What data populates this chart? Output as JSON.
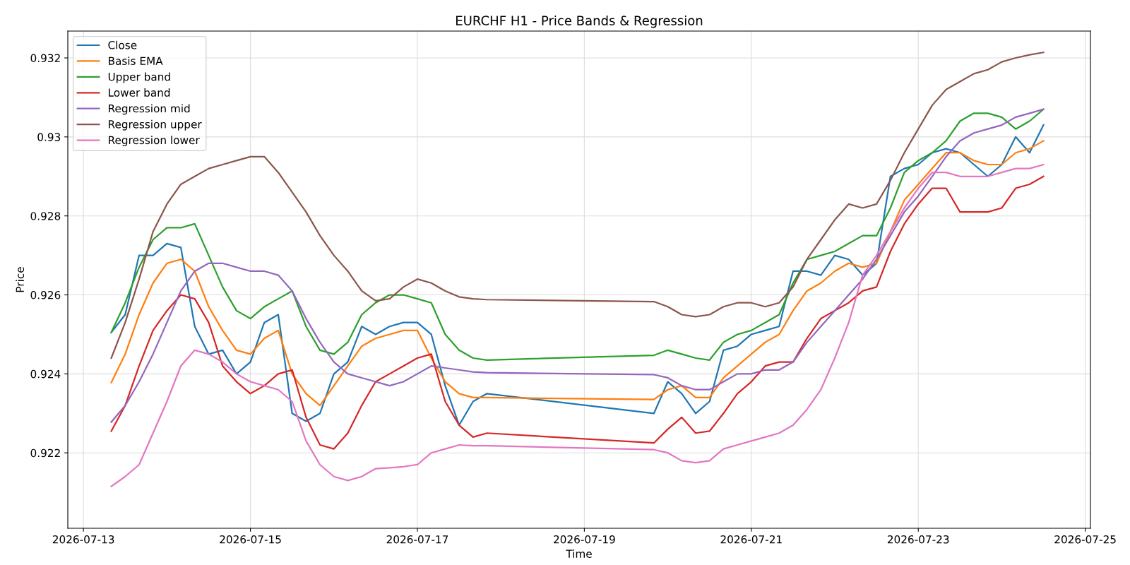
{
  "chart_data": {
    "type": "line",
    "title": "EURCHF H1 - Price Bands & Regression",
    "xlabel": "Time",
    "ylabel": "Price",
    "x": [
      "2026-07-13T08:00",
      "2026-07-13T12:00",
      "2026-07-13T16:00",
      "2026-07-13T20:00",
      "2026-07-14T00:00",
      "2026-07-14T04:00",
      "2026-07-14T08:00",
      "2026-07-14T12:00",
      "2026-07-14T16:00",
      "2026-07-14T20:00",
      "2026-07-15T00:00",
      "2026-07-15T04:00",
      "2026-07-15T08:00",
      "2026-07-15T12:00",
      "2026-07-15T16:00",
      "2026-07-15T20:00",
      "2026-07-16T00:00",
      "2026-07-16T04:00",
      "2026-07-16T08:00",
      "2026-07-16T12:00",
      "2026-07-16T16:00",
      "2026-07-16T20:00",
      "2026-07-17T00:00",
      "2026-07-17T04:00",
      "2026-07-17T08:00",
      "2026-07-17T12:00",
      "2026-07-17T16:00",
      "2026-07-17T20:00",
      "2026-07-19T20:00",
      "2026-07-20T00:00",
      "2026-07-20T04:00",
      "2026-07-20T08:00",
      "2026-07-20T12:00",
      "2026-07-20T16:00",
      "2026-07-20T20:00",
      "2026-07-21T00:00",
      "2026-07-21T04:00",
      "2026-07-21T08:00",
      "2026-07-21T12:00",
      "2026-07-21T16:00",
      "2026-07-21T20:00",
      "2026-07-22T00:00",
      "2026-07-22T04:00",
      "2026-07-22T08:00",
      "2026-07-22T12:00",
      "2026-07-22T16:00",
      "2026-07-22T20:00",
      "2026-07-23T00:00",
      "2026-07-23T04:00",
      "2026-07-23T08:00",
      "2026-07-23T12:00",
      "2026-07-23T16:00",
      "2026-07-23T20:00",
      "2026-07-24T00:00",
      "2026-07-24T04:00",
      "2026-07-24T08:00",
      "2026-07-24T12:00"
    ],
    "series": [
      {
        "name": "Close",
        "color": "#1f77b4",
        "values": [
          0.92505,
          0.9255,
          0.927,
          0.927,
          0.9273,
          0.9272,
          0.9252,
          0.9245,
          0.9246,
          0.924,
          0.9243,
          0.9253,
          0.9255,
          0.923,
          0.9228,
          0.923,
          0.924,
          0.9243,
          0.9252,
          0.925,
          0.9252,
          0.9253,
          0.9253,
          0.925,
          0.9237,
          0.9227,
          0.9233,
          0.9235,
          0.923,
          0.9238,
          0.9235,
          0.923,
          0.9233,
          0.9246,
          0.9247,
          0.925,
          0.9251,
          0.9252,
          0.9266,
          0.9266,
          0.9265,
          0.927,
          0.9269,
          0.9265,
          0.9268,
          0.929,
          0.9292,
          0.9293,
          0.9296,
          0.9297,
          0.9296,
          0.9293,
          0.929,
          0.9293,
          0.93,
          0.9296,
          0.9303
        ]
      },
      {
        "name": "Basis EMA",
        "color": "#ff7f0e",
        "values": [
          0.92378,
          0.9245,
          0.9255,
          0.9263,
          0.9268,
          0.9269,
          0.9266,
          0.9257,
          0.9251,
          0.9246,
          0.9245,
          0.9249,
          0.9251,
          0.924,
          0.9235,
          0.9232,
          0.9237,
          0.9242,
          0.9247,
          0.9249,
          0.925,
          0.9251,
          0.9251,
          0.9244,
          0.9238,
          0.9235,
          0.9234,
          0.9234,
          0.92335,
          0.9236,
          0.9237,
          0.9234,
          0.9234,
          0.9239,
          0.9242,
          0.9245,
          0.9248,
          0.925,
          0.9256,
          0.9261,
          0.9263,
          0.9266,
          0.9268,
          0.9267,
          0.9268,
          0.9276,
          0.9284,
          0.9288,
          0.9292,
          0.9296,
          0.9296,
          0.9294,
          0.9293,
          0.9293,
          0.9296,
          0.9297,
          0.9299
        ]
      },
      {
        "name": "Upper band",
        "color": "#2ca02c",
        "values": [
          0.92505,
          0.9258,
          0.9267,
          0.9274,
          0.9277,
          0.9277,
          0.9278,
          0.927,
          0.9262,
          0.9256,
          0.9254,
          0.9257,
          0.9259,
          0.9261,
          0.9252,
          0.9246,
          0.9245,
          0.9248,
          0.9255,
          0.9258,
          0.926,
          0.926,
          0.9259,
          0.9258,
          0.925,
          0.9246,
          0.9244,
          0.92435,
          0.92447,
          0.9246,
          0.9245,
          0.9244,
          0.92435,
          0.9248,
          0.925,
          0.9251,
          0.9253,
          0.9255,
          0.9263,
          0.9269,
          0.927,
          0.9271,
          0.9273,
          0.9275,
          0.9275,
          0.9282,
          0.9291,
          0.9294,
          0.9296,
          0.9299,
          0.9304,
          0.9306,
          0.9306,
          0.9305,
          0.9302,
          0.9304,
          0.9307
        ]
      },
      {
        "name": "Lower band",
        "color": "#d62728",
        "values": [
          0.92255,
          0.9232,
          0.9242,
          0.9251,
          0.9256,
          0.926,
          0.9259,
          0.9253,
          0.9242,
          0.9238,
          0.9235,
          0.9237,
          0.924,
          0.9241,
          0.9229,
          0.9222,
          0.9221,
          0.9225,
          0.9232,
          0.9238,
          0.924,
          0.9242,
          0.9244,
          0.9245,
          0.9233,
          0.9227,
          0.9224,
          0.9225,
          0.92225,
          0.9226,
          0.9229,
          0.9225,
          0.92255,
          0.923,
          0.9235,
          0.9238,
          0.9242,
          0.9243,
          0.9243,
          0.9249,
          0.9254,
          0.9256,
          0.9258,
          0.9261,
          0.9262,
          0.9271,
          0.9278,
          0.9283,
          0.9287,
          0.9287,
          0.9281,
          0.9281,
          0.9281,
          0.9282,
          0.9287,
          0.9288,
          0.929
        ]
      },
      {
        "name": "Regression mid",
        "color": "#9467bd",
        "values": [
          0.92278,
          0.9232,
          0.9238,
          0.9245,
          0.9253,
          0.9261,
          0.9266,
          0.9268,
          0.9268,
          0.9267,
          0.9266,
          0.9266,
          0.9265,
          0.9261,
          0.9254,
          0.9248,
          0.9243,
          0.924,
          0.9239,
          0.9238,
          0.9237,
          0.9238,
          0.924,
          0.9242,
          0.92415,
          0.9241,
          0.92405,
          0.92403,
          0.92398,
          0.9239,
          0.9237,
          0.9236,
          0.9236,
          0.9238,
          0.924,
          0.924,
          0.9241,
          0.9241,
          0.9243,
          0.9248,
          0.9252,
          0.9256,
          0.926,
          0.9264,
          0.9269,
          0.9275,
          0.9281,
          0.9285,
          0.929,
          0.9295,
          0.9299,
          0.9301,
          0.9302,
          0.9303,
          0.9305,
          0.9306,
          0.9307
        ]
      },
      {
        "name": "Regression upper",
        "color": "#8c564b",
        "values": [
          0.9244,
          0.9253,
          0.9264,
          0.9276,
          0.9283,
          0.9288,
          0.929,
          0.9292,
          0.9293,
          0.9294,
          0.9295,
          0.9295,
          0.9291,
          0.9286,
          0.9281,
          0.9275,
          0.927,
          0.9266,
          0.9261,
          0.92585,
          0.9259,
          0.9262,
          0.9264,
          0.9263,
          0.9261,
          0.92595,
          0.9259,
          0.92588,
          0.92583,
          0.9257,
          0.9255,
          0.92545,
          0.9255,
          0.9257,
          0.9258,
          0.9258,
          0.9257,
          0.9258,
          0.9262,
          0.9269,
          0.9274,
          0.9279,
          0.9283,
          0.9282,
          0.9283,
          0.9289,
          0.9296,
          0.9302,
          0.9308,
          0.9312,
          0.9314,
          0.9316,
          0.9317,
          0.9319,
          0.932,
          0.93208,
          0.93214
        ]
      },
      {
        "name": "Regression lower",
        "color": "#e377c2",
        "values": [
          0.92115,
          0.9214,
          0.9217,
          0.9225,
          0.9233,
          0.9242,
          0.9246,
          0.9245,
          0.9243,
          0.924,
          0.9238,
          0.9237,
          0.9236,
          0.9233,
          0.9223,
          0.9217,
          0.9214,
          0.9213,
          0.9214,
          0.9216,
          0.92162,
          0.92165,
          0.9217,
          0.922,
          0.9221,
          0.9222,
          0.92218,
          0.92218,
          0.92208,
          0.922,
          0.9218,
          0.92175,
          0.9218,
          0.9221,
          0.9222,
          0.9223,
          0.9224,
          0.9225,
          0.9227,
          0.9231,
          0.9236,
          0.9244,
          0.9253,
          0.9265,
          0.927,
          0.9276,
          0.9282,
          0.9287,
          0.9291,
          0.9291,
          0.929,
          0.929,
          0.929,
          0.9291,
          0.9292,
          0.9292,
          0.9293
        ]
      }
    ],
    "xlim": [
      "2026-07-12T19:30",
      "2026-07-25T01:30"
    ],
    "xticks": [
      {
        "value": "2026-07-13",
        "label": "2026-07-13"
      },
      {
        "value": "2026-07-15",
        "label": "2026-07-15"
      },
      {
        "value": "2026-07-17",
        "label": "2026-07-17"
      },
      {
        "value": "2026-07-19",
        "label": "2026-07-19"
      },
      {
        "value": "2026-07-21",
        "label": "2026-07-21"
      },
      {
        "value": "2026-07-23",
        "label": "2026-07-23"
      },
      {
        "value": "2026-07-25",
        "label": "2026-07-25"
      }
    ],
    "ylim": [
      0.92009,
      0.93268
    ],
    "yticks": [
      0.922,
      0.924,
      0.926,
      0.928,
      0.93,
      0.932
    ],
    "grid": true,
    "legend": "top left"
  }
}
